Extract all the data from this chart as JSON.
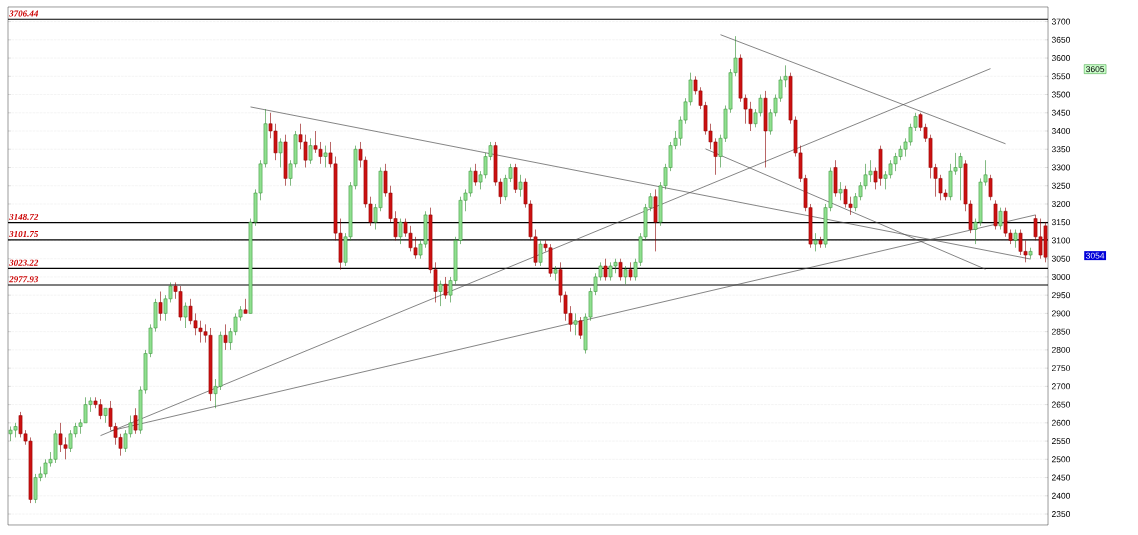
{
  "chart_data": {
    "type": "candlestick",
    "categories": [
      null,
      null,
      null,
      null,
      null,
      null,
      null,
      null,
      null,
      null,
      null,
      null,
      null,
      null,
      null,
      null,
      null,
      null,
      null,
      null,
      null,
      null,
      null,
      null,
      null,
      null,
      null,
      null,
      null,
      null,
      null,
      null,
      null,
      null,
      null,
      null,
      null,
      null,
      null,
      null,
      null,
      null,
      null,
      null,
      null,
      null,
      null,
      null,
      null,
      null,
      null,
      null,
      null,
      null,
      null,
      null,
      null,
      null,
      null,
      null,
      null,
      null,
      null,
      null,
      null,
      null,
      null,
      null,
      null,
      null,
      null,
      null,
      null,
      null,
      null,
      null,
      null,
      null,
      null,
      null,
      null,
      null,
      null,
      null,
      null,
      null,
      null,
      null,
      null,
      null,
      null,
      null,
      null,
      null,
      null,
      null,
      null,
      null,
      null,
      null,
      null,
      null,
      null,
      null,
      null,
      null,
      null,
      null,
      null,
      null,
      null,
      null,
      null,
      null,
      null,
      null,
      null,
      null,
      null,
      null,
      null,
      null,
      null,
      null,
      null,
      null,
      null,
      null,
      null,
      null,
      null,
      null,
      null,
      null,
      null,
      null,
      null,
      null,
      null,
      null,
      null,
      null,
      null,
      null,
      null,
      null,
      null,
      null,
      null,
      null,
      null,
      null,
      null,
      null,
      null,
      null,
      null,
      null,
      null,
      null,
      null,
      null,
      null,
      null,
      null,
      null,
      null,
      null,
      null,
      null,
      null,
      null,
      null,
      null,
      null,
      null,
      null,
      null,
      null,
      null,
      null,
      null,
      null,
      null,
      null,
      null,
      null,
      null,
      null,
      null,
      null,
      null,
      null,
      null,
      null,
      null,
      null,
      null,
      null,
      null,
      null,
      null,
      null,
      null,
      null,
      null,
      null,
      null
    ],
    "ohlc": [
      [
        2570,
        2590,
        2550,
        2580
      ],
      [
        2580,
        2600,
        2560,
        2590
      ],
      [
        2620,
        2630,
        2560,
        2570
      ],
      [
        2570,
        2580,
        2540,
        2550
      ],
      [
        2550,
        2560,
        2380,
        2390
      ],
      [
        2390,
        2460,
        2380,
        2450
      ],
      [
        2450,
        2480,
        2440,
        2460
      ],
      [
        2460,
        2500,
        2450,
        2490
      ],
      [
        2490,
        2520,
        2480,
        2500
      ],
      [
        2500,
        2580,
        2490,
        2570
      ],
      [
        2570,
        2600,
        2520,
        2540
      ],
      [
        2540,
        2560,
        2500,
        2530
      ],
      [
        2530,
        2580,
        2520,
        2570
      ],
      [
        2570,
        2600,
        2560,
        2590
      ],
      [
        2590,
        2610,
        2570,
        2600
      ],
      [
        2600,
        2670,
        2600,
        2650
      ],
      [
        2650,
        2670,
        2630,
        2660
      ],
      [
        2660,
        2670,
        2640,
        2650
      ],
      [
        2650,
        2665,
        2610,
        2620
      ],
      [
        2620,
        2640,
        2600,
        2640
      ],
      [
        2640,
        2660,
        2580,
        2590
      ],
      [
        2590,
        2600,
        2540,
        2560
      ],
      [
        2560,
        2570,
        2510,
        2530
      ],
      [
        2530,
        2580,
        2520,
        2570
      ],
      [
        2570,
        2620,
        2560,
        2600
      ],
      [
        2620,
        2640,
        2570,
        2580
      ],
      [
        2580,
        2700,
        2570,
        2690
      ],
      [
        2690,
        2800,
        2680,
        2790
      ],
      [
        2790,
        2870,
        2780,
        2860
      ],
      [
        2860,
        2940,
        2850,
        2930
      ],
      [
        2930,
        2960,
        2880,
        2900
      ],
      [
        2900,
        2950,
        2880,
        2940
      ],
      [
        2940,
        2985,
        2930,
        2975
      ],
      [
        2975,
        2985,
        2940,
        2960
      ],
      [
        2960,
        2975,
        2880,
        2890
      ],
      [
        2890,
        2930,
        2860,
        2920
      ],
      [
        2920,
        2940,
        2870,
        2880
      ],
      [
        2880,
        2900,
        2840,
        2860
      ],
      [
        2860,
        2880,
        2820,
        2850
      ],
      [
        2850,
        2870,
        2820,
        2840
      ],
      [
        2840,
        2860,
        2660,
        2680
      ],
      [
        2680,
        2720,
        2640,
        2700
      ],
      [
        2700,
        2850,
        2690,
        2840
      ],
      [
        2840,
        2870,
        2800,
        2820
      ],
      [
        2820,
        2860,
        2800,
        2850
      ],
      [
        2850,
        2900,
        2840,
        2890
      ],
      [
        2890,
        2920,
        2880,
        2910
      ],
      [
        2910,
        2940,
        2900,
        2900
      ],
      [
        2900,
        3160,
        2900,
        3150
      ],
      [
        3150,
        3240,
        3140,
        3230
      ],
      [
        3230,
        3320,
        3210,
        3310
      ],
      [
        3310,
        3460,
        3300,
        3420
      ],
      [
        3420,
        3450,
        3380,
        3400
      ],
      [
        3400,
        3420,
        3320,
        3340
      ],
      [
        3340,
        3380,
        3300,
        3370
      ],
      [
        3370,
        3390,
        3250,
        3270
      ],
      [
        3270,
        3320,
        3250,
        3310
      ],
      [
        3310,
        3400,
        3300,
        3390
      ],
      [
        3390,
        3420,
        3350,
        3370
      ],
      [
        3370,
        3390,
        3300,
        3320
      ],
      [
        3320,
        3380,
        3310,
        3360
      ],
      [
        3360,
        3400,
        3340,
        3350
      ],
      [
        3350,
        3370,
        3310,
        3330
      ],
      [
        3330,
        3360,
        3300,
        3340
      ],
      [
        3340,
        3370,
        3300,
        3310
      ],
      [
        3310,
        3330,
        3100,
        3120
      ],
      [
        3120,
        3160,
        3020,
        3040
      ],
      [
        3040,
        3120,
        3030,
        3110
      ],
      [
        3110,
        3260,
        3100,
        3250
      ],
      [
        3250,
        3360,
        3240,
        3350
      ],
      [
        3350,
        3370,
        3300,
        3320
      ],
      [
        3320,
        3330,
        3190,
        3200
      ],
      [
        3200,
        3220,
        3140,
        3150
      ],
      [
        3150,
        3200,
        3130,
        3190
      ],
      [
        3190,
        3300,
        3180,
        3290
      ],
      [
        3290,
        3310,
        3220,
        3230
      ],
      [
        3230,
        3250,
        3150,
        3160
      ],
      [
        3160,
        3180,
        3100,
        3110
      ],
      [
        3110,
        3160,
        3090,
        3150
      ],
      [
        3150,
        3160,
        3110,
        3120
      ],
      [
        3120,
        3140,
        3070,
        3080
      ],
      [
        3080,
        3110,
        3050,
        3060
      ],
      [
        3060,
        3100,
        3050,
        3090
      ],
      [
        3090,
        3180,
        3080,
        3170
      ],
      [
        3170,
        3190,
        3010,
        3020
      ],
      [
        3020,
        3040,
        2930,
        2960
      ],
      [
        2960,
        2990,
        2920,
        2980
      ],
      [
        2980,
        3000,
        2940,
        2950
      ],
      [
        2950,
        3000,
        2930,
        2990
      ],
      [
        2990,
        3110,
        2980,
        3100
      ],
      [
        3100,
        3220,
        3090,
        3210
      ],
      [
        3210,
        3240,
        3180,
        3230
      ],
      [
        3230,
        3300,
        3220,
        3290
      ],
      [
        3290,
        3310,
        3250,
        3260
      ],
      [
        3260,
        3290,
        3240,
        3280
      ],
      [
        3280,
        3340,
        3270,
        3330
      ],
      [
        3330,
        3370,
        3320,
        3360
      ],
      [
        3360,
        3370,
        3250,
        3260
      ],
      [
        3260,
        3270,
        3200,
        3220
      ],
      [
        3220,
        3280,
        3210,
        3270
      ],
      [
        3270,
        3310,
        3260,
        3300
      ],
      [
        3300,
        3310,
        3230,
        3240
      ],
      [
        3240,
        3280,
        3220,
        3260
      ],
      [
        3260,
        3270,
        3190,
        3200
      ],
      [
        3200,
        3210,
        3100,
        3110
      ],
      [
        3110,
        3130,
        3030,
        3040
      ],
      [
        3040,
        3100,
        3030,
        3090
      ],
      [
        3090,
        3100,
        3070,
        3080
      ],
      [
        3080,
        3090,
        3000,
        3010
      ],
      [
        3010,
        3030,
        2990,
        3020
      ],
      [
        3020,
        3040,
        2930,
        2950
      ],
      [
        2950,
        2960,
        2880,
        2900
      ],
      [
        2900,
        2920,
        2850,
        2870
      ],
      [
        2870,
        2900,
        2840,
        2880
      ],
      [
        2880,
        2890,
        2830,
        2840
      ],
      [
        2800,
        2900,
        2790,
        2890
      ],
      [
        2890,
        2970,
        2880,
        2960
      ],
      [
        2960,
        3010,
        2950,
        3000
      ],
      [
        3000,
        3040,
        2990,
        3030
      ],
      [
        3030,
        3050,
        2990,
        3000
      ],
      [
        3000,
        3040,
        2990,
        3030
      ],
      [
        3030,
        3050,
        3010,
        3040
      ],
      [
        3040,
        3050,
        2990,
        3000
      ],
      [
        3000,
        3030,
        2980,
        3020
      ],
      [
        3020,
        3040,
        2990,
        3000
      ],
      [
        3000,
        3050,
        2990,
        3040
      ],
      [
        3040,
        3120,
        3030,
        3110
      ],
      [
        3110,
        3200,
        3100,
        3190
      ],
      [
        3190,
        3230,
        3180,
        3220
      ],
      [
        3220,
        3240,
        3070,
        3150
      ],
      [
        3150,
        3260,
        3140,
        3250
      ],
      [
        3250,
        3310,
        3240,
        3300
      ],
      [
        3300,
        3370,
        3290,
        3360
      ],
      [
        3360,
        3400,
        3350,
        3380
      ],
      [
        3380,
        3440,
        3360,
        3430
      ],
      [
        3430,
        3490,
        3420,
        3480
      ],
      [
        3480,
        3560,
        3470,
        3540
      ],
      [
        3540,
        3550,
        3500,
        3510
      ],
      [
        3510,
        3520,
        3460,
        3470
      ],
      [
        3470,
        3480,
        3390,
        3400
      ],
      [
        3400,
        3420,
        3350,
        3370
      ],
      [
        3370,
        3380,
        3280,
        3330
      ],
      [
        3330,
        3390,
        3300,
        3380
      ],
      [
        3380,
        3470,
        3370,
        3460
      ],
      [
        3460,
        3570,
        3450,
        3560
      ],
      [
        3560,
        3660,
        3550,
        3600
      ],
      [
        3600,
        3610,
        3480,
        3490
      ],
      [
        3490,
        3500,
        3420,
        3460
      ],
      [
        3460,
        3480,
        3400,
        3420
      ],
      [
        3420,
        3460,
        3410,
        3450
      ],
      [
        3450,
        3500,
        3440,
        3490
      ],
      [
        3490,
        3510,
        3300,
        3400
      ],
      [
        3400,
        3460,
        3390,
        3450
      ],
      [
        3450,
        3500,
        3440,
        3490
      ],
      [
        3490,
        3550,
        3480,
        3540
      ],
      [
        3540,
        3580,
        3520,
        3550
      ],
      [
        3550,
        3560,
        3420,
        3430
      ],
      [
        3430,
        3440,
        3330,
        3340
      ],
      [
        3340,
        3360,
        3260,
        3270
      ],
      [
        3270,
        3280,
        3180,
        3190
      ],
      [
        3190,
        3200,
        3080,
        3090
      ],
      [
        3090,
        3120,
        3070,
        3100
      ],
      [
        3100,
        3110,
        3080,
        3090
      ],
      [
        3090,
        3200,
        3080,
        3190
      ],
      [
        3190,
        3300,
        3180,
        3290
      ],
      [
        3300,
        3320,
        3220,
        3230
      ],
      [
        3230,
        3260,
        3210,
        3240
      ],
      [
        3240,
        3250,
        3190,
        3200
      ],
      [
        3200,
        3220,
        3170,
        3190
      ],
      [
        3190,
        3230,
        3180,
        3220
      ],
      [
        3220,
        3260,
        3210,
        3250
      ],
      [
        3250,
        3310,
        3240,
        3280
      ],
      [
        3280,
        3320,
        3260,
        3290
      ],
      [
        3290,
        3300,
        3240,
        3260
      ],
      [
        3350,
        3360,
        3250,
        3270
      ],
      [
        3270,
        3290,
        3240,
        3280
      ],
      [
        3280,
        3320,
        3270,
        3310
      ],
      [
        3310,
        3340,
        3290,
        3330
      ],
      [
        3330,
        3360,
        3320,
        3350
      ],
      [
        3350,
        3380,
        3330,
        3370
      ],
      [
        3370,
        3420,
        3360,
        3410
      ],
      [
        3410,
        3450,
        3400,
        3440
      ],
      [
        3445,
        3450,
        3400,
        3410
      ],
      [
        3410,
        3420,
        3370,
        3380
      ],
      [
        3380,
        3390,
        3270,
        3300
      ],
      [
        3300,
        3310,
        3220,
        3270
      ],
      [
        3270,
        3280,
        3210,
        3230
      ],
      [
        3230,
        3240,
        3210,
        3220
      ],
      [
        3220,
        3310,
        3210,
        3290
      ],
      [
        3290,
        3340,
        3280,
        3300
      ],
      [
        3300,
        3340,
        3210,
        3330
      ],
      [
        3310,
        3320,
        3180,
        3200
      ],
      [
        3200,
        3210,
        3120,
        3130
      ],
      [
        3130,
        3160,
        3090,
        3150
      ],
      [
        3150,
        3270,
        3140,
        3260
      ],
      [
        3260,
        3320,
        3250,
        3280
      ],
      [
        3270,
        3280,
        3210,
        3220
      ],
      [
        3200,
        3210,
        3130,
        3140
      ],
      [
        3140,
        3190,
        3130,
        3180
      ],
      [
        3180,
        3190,
        3110,
        3120
      ],
      [
        3120,
        3130,
        3090,
        3100
      ],
      [
        3100,
        3130,
        3080,
        3120
      ],
      [
        3120,
        3130,
        3060,
        3070
      ],
      [
        3070,
        3100,
        3040,
        3060
      ],
      [
        3060,
        3080,
        3050,
        3070
      ],
      [
        3160,
        3170,
        3100,
        3110
      ],
      [
        3110,
        3160,
        3050,
        3060
      ],
      [
        3140,
        3150,
        3040,
        3054
      ]
    ],
    "series": [
      {
        "type": "line",
        "color": "#505050",
        "values": [
          null,
          null,
          null,
          null,
          null,
          null,
          null,
          null,
          null,
          null,
          null,
          null,
          null,
          null,
          null,
          null,
          null,
          null,
          null,
          null,
          null,
          null,
          null,
          null,
          null,
          null,
          null,
          null,
          null,
          null,
          null,
          null,
          null,
          null,
          null,
          null,
          null,
          null,
          null,
          null,
          null,
          null,
          null,
          null,
          null,
          null,
          null,
          null,
          3466,
          null,
          null,
          null,
          null,
          null,
          null,
          null,
          null,
          null,
          null,
          null,
          null,
          null,
          null,
          null,
          null,
          null,
          null,
          null,
          null,
          null,
          null,
          null,
          null,
          null,
          null,
          null,
          null,
          null,
          null,
          null,
          null,
          null,
          null,
          null,
          null,
          null,
          null,
          null,
          null,
          null,
          null,
          null,
          null,
          null,
          null,
          null,
          null,
          null,
          null,
          null,
          null,
          null,
          null,
          null,
          null,
          null,
          null,
          null,
          null,
          null,
          null,
          null,
          null,
          null,
          null,
          null,
          null,
          null,
          null,
          null,
          null,
          null,
          null,
          null,
          null,
          null,
          null,
          null,
          null,
          null,
          null,
          null,
          null,
          null,
          null,
          null,
          null,
          null,
          null,
          null,
          null,
          null,
          null,
          null,
          null,
          null,
          null,
          null,
          null,
          null,
          null,
          null,
          null,
          null,
          null,
          null,
          null,
          null,
          null,
          null,
          null,
          null,
          null,
          null,
          null,
          null,
          null,
          null,
          null,
          null,
          null,
          null,
          null,
          null,
          null,
          null,
          null,
          null,
          null,
          null,
          null,
          null,
          null,
          null,
          null,
          null,
          null,
          null,
          null,
          null,
          null,
          null,
          null,
          null,
          null,
          null,
          null,
          null,
          null,
          null,
          null,
          null,
          null,
          null,
          3049,
          null,
          null,
          null
        ]
      },
      {
        "type": "line",
        "color": "#505050",
        "values": [
          null,
          null,
          null,
          null,
          null,
          null,
          null,
          null,
          null,
          null,
          null,
          null,
          null,
          null,
          null,
          null,
          null,
          null,
          null,
          null,
          null,
          null,
          null,
          null,
          null,
          null,
          null,
          null,
          null,
          null,
          null,
          null,
          null,
          null,
          null,
          null,
          null,
          null,
          null,
          null,
          null,
          null,
          null,
          null,
          null,
          null,
          null,
          null,
          null,
          null,
          null,
          null,
          null,
          null,
          null,
          null,
          null,
          null,
          null,
          null,
          null,
          null,
          null,
          null,
          null,
          null,
          null,
          null,
          null,
          null,
          null,
          null,
          null,
          null,
          null,
          null,
          null,
          null,
          null,
          null,
          null,
          null,
          null,
          null,
          null,
          null,
          null,
          null,
          null,
          null,
          null,
          null,
          null,
          null,
          null,
          null,
          null,
          null,
          null,
          null,
          null,
          null,
          null,
          null,
          null,
          null,
          null,
          null,
          null,
          null,
          null,
          null,
          null,
          null,
          null,
          null,
          null,
          null,
          null,
          null,
          null,
          null,
          null,
          null,
          null,
          null,
          null,
          null,
          null,
          null,
          null,
          null,
          null,
          null,
          null,
          null,
          null,
          null,
          null,
          3351,
          null,
          null,
          null,
          null,
          null,
          null,
          null,
          null,
          null,
          null,
          null,
          null,
          null,
          null,
          null,
          null,
          null,
          null,
          null,
          null,
          null,
          null,
          null,
          null,
          null,
          null,
          null,
          null,
          null,
          null,
          null,
          null,
          null,
          null,
          null,
          null,
          null,
          null,
          null,
          null,
          null,
          null,
          null,
          null,
          null,
          null,
          null,
          null,
          null,
          null,
          null,
          null,
          null,
          null,
          null,
          3021,
          null,
          null,
          null,
          null,
          null,
          null,
          null,
          null,
          null,
          null,
          null,
          null
        ]
      },
      {
        "type": "line",
        "color": "#505050",
        "values": [
          null,
          null,
          null,
          null,
          null,
          null,
          null,
          null,
          null,
          null,
          null,
          null,
          null,
          null,
          null,
          null,
          null,
          null,
          null,
          null,
          null,
          null,
          null,
          null,
          null,
          null,
          null,
          null,
          null,
          null,
          null,
          null,
          null,
          null,
          null,
          null,
          null,
          null,
          null,
          null,
          null,
          null,
          null,
          null,
          null,
          null,
          null,
          null,
          null,
          null,
          null,
          null,
          null,
          null,
          null,
          null,
          null,
          null,
          null,
          null,
          null,
          null,
          null,
          null,
          null,
          null,
          null,
          null,
          null,
          null,
          null,
          null,
          null,
          null,
          null,
          null,
          null,
          null,
          null,
          null,
          null,
          null,
          null,
          null,
          null,
          null,
          null,
          null,
          null,
          null,
          null,
          null,
          null,
          null,
          null,
          null,
          null,
          null,
          null,
          null,
          null,
          null,
          null,
          null,
          null,
          null,
          null,
          null,
          null,
          null,
          null,
          null,
          null,
          null,
          null,
          null,
          null,
          null,
          null,
          null,
          null,
          null,
          null,
          null,
          null,
          null,
          null,
          null,
          null,
          null,
          null,
          null,
          null,
          null,
          null,
          null,
          null,
          null,
          null,
          null,
          null,
          null,
          3664,
          null,
          null,
          null,
          null,
          null,
          null,
          null,
          null,
          null,
          null,
          null,
          null,
          null,
          null,
          null,
          null,
          null,
          null,
          null,
          null,
          null,
          null,
          null,
          null,
          null,
          null,
          null,
          null,
          null,
          null,
          null,
          null,
          null,
          null,
          null,
          null,
          null,
          null,
          null,
          null,
          null,
          null,
          null,
          null,
          null,
          null,
          null,
          null,
          null,
          null,
          null,
          null,
          null,
          null,
          null,
          null,
          3365,
          null,
          null,
          null,
          null,
          null,
          null,
          null,
          null
        ]
      },
      {
        "type": "line",
        "color": "#505050",
        "values": [
          null,
          null,
          null,
          null,
          null,
          null,
          null,
          null,
          null,
          null,
          null,
          null,
          null,
          null,
          null,
          null,
          null,
          null,
          2565,
          null,
          null,
          null,
          null,
          null,
          null,
          null,
          null,
          null,
          null,
          null,
          null,
          null,
          null,
          null,
          null,
          null,
          null,
          null,
          null,
          null,
          null,
          null,
          null,
          null,
          null,
          null,
          null,
          null,
          null,
          null,
          null,
          null,
          null,
          null,
          null,
          null,
          null,
          null,
          null,
          null,
          null,
          null,
          null,
          null,
          null,
          null,
          null,
          null,
          null,
          null,
          null,
          null,
          null,
          null,
          null,
          null,
          null,
          null,
          null,
          null,
          null,
          null,
          null,
          null,
          null,
          null,
          null,
          null,
          null,
          null,
          null,
          null,
          null,
          null,
          null,
          null,
          null,
          null,
          null,
          null,
          null,
          null,
          null,
          null,
          null,
          null,
          null,
          null,
          null,
          null,
          null,
          null,
          null,
          null,
          null,
          null,
          null,
          null,
          null,
          null,
          null,
          null,
          null,
          null,
          null,
          null,
          null,
          null,
          null,
          null,
          null,
          null,
          null,
          null,
          null,
          null,
          null,
          null,
          null,
          null,
          null,
          null,
          null,
          null,
          null,
          null,
          null,
          null,
          null,
          null,
          null,
          null,
          null,
          null,
          null,
          null,
          null,
          null,
          null,
          null,
          null,
          null,
          null,
          null,
          null,
          null,
          null,
          null,
          null,
          null,
          null,
          null,
          null,
          null,
          null,
          null,
          null,
          null,
          null,
          null,
          null,
          null,
          null,
          null,
          null,
          null,
          null,
          null,
          null,
          null,
          null,
          null,
          null,
          null,
          null,
          null,
          3571,
          null,
          null,
          null,
          null,
          null,
          null,
          null,
          null,
          null,
          null,
          null
        ]
      },
      {
        "type": "line",
        "color": "#505050",
        "values": [
          null,
          null,
          null,
          null,
          null,
          null,
          null,
          null,
          null,
          null,
          null,
          null,
          null,
          null,
          null,
          null,
          null,
          null,
          null,
          null,
          2578,
          null,
          null,
          null,
          null,
          null,
          null,
          null,
          null,
          null,
          null,
          null,
          null,
          null,
          null,
          null,
          null,
          null,
          null,
          null,
          null,
          null,
          null,
          null,
          null,
          null,
          null,
          null,
          null,
          null,
          null,
          null,
          null,
          null,
          null,
          null,
          null,
          null,
          null,
          null,
          null,
          null,
          null,
          null,
          null,
          null,
          null,
          null,
          null,
          null,
          null,
          null,
          null,
          null,
          null,
          null,
          null,
          null,
          null,
          null,
          null,
          null,
          null,
          null,
          null,
          null,
          null,
          null,
          null,
          null,
          null,
          null,
          null,
          null,
          null,
          null,
          null,
          null,
          null,
          null,
          null,
          null,
          null,
          null,
          null,
          null,
          null,
          null,
          null,
          null,
          null,
          null,
          null,
          null,
          null,
          null,
          null,
          null,
          null,
          null,
          null,
          null,
          null,
          null,
          null,
          null,
          null,
          null,
          null,
          null,
          null,
          null,
          null,
          null,
          null,
          null,
          null,
          null,
          null,
          null,
          null,
          null,
          null,
          null,
          null,
          null,
          null,
          null,
          null,
          null,
          null,
          null,
          null,
          null,
          null,
          null,
          null,
          null,
          null,
          null,
          null,
          null,
          null,
          null,
          null,
          null,
          null,
          null,
          null,
          null,
          null,
          null,
          null,
          null,
          null,
          null,
          null,
          null,
          null,
          null,
          null,
          null,
          null,
          null,
          null,
          null,
          null,
          null,
          null,
          null,
          null,
          null,
          null,
          null,
          null,
          null,
          null,
          null,
          null,
          null,
          null,
          null,
          null,
          null,
          null,
          3170,
          null,
          null
        ]
      }
    ],
    "ylim": [
      2320,
      3740
    ],
    "yticks": [
      2350,
      2400,
      2450,
      2500,
      2550,
      2600,
      2650,
      2700,
      2750,
      2800,
      2850,
      2900,
      2950,
      3000,
      3050,
      3100,
      3150,
      3200,
      3250,
      3300,
      3350,
      3400,
      3450,
      3500,
      3550,
      3600,
      3650,
      3700
    ],
    "grid": "y",
    "tick_labels": "y",
    "ref_lines": [
      {
        "axis": "y",
        "value": 3706.44,
        "label": "3706.44",
        "color": "#000000"
      },
      {
        "axis": "y",
        "value": 3148.72,
        "label": "3148.72"
      },
      {
        "axis": "y",
        "value": 3101.75,
        "label": "3101.75"
      },
      {
        "axis": "y",
        "value": 3023.22,
        "label": "3023.22",
        "color": "#000000"
      },
      {
        "axis": "y",
        "value": 2977.93,
        "label": "2977.93",
        "color": "#000000"
      }
    ],
    "annotations": [
      "3605",
      "3054"
    ]
  }
}
